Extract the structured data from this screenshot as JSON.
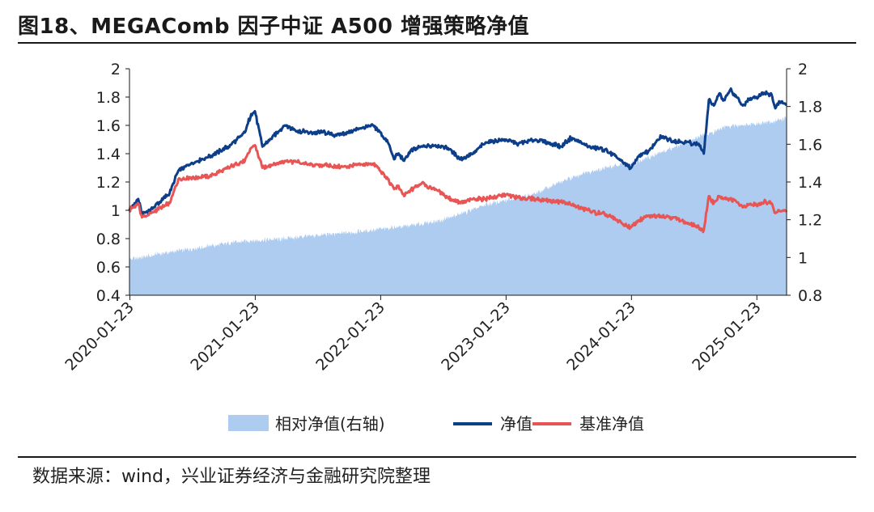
{
  "title": "图18、MEGAComb 因子中证 A500 增强策略净值",
  "source": "数据来源：wind，兴业证券经济与金融研究院整理",
  "colors": {
    "relative": "#aecbf0",
    "nav": "#0c3e8a",
    "benchmark": "#e85555",
    "axis": "#1a1a1a"
  },
  "chart_data": {
    "type": "line",
    "legend_position": "bottom",
    "grid": false,
    "x_ticks": [
      "2020-01-23",
      "2021-01-23",
      "2022-01-23",
      "2023-01-23",
      "2024-01-23",
      "2025-01-23"
    ],
    "x_range": [
      2020.06,
      2025.3
    ],
    "y_left": {
      "ticks": [
        "2",
        "1.8",
        "1.6",
        "1.4",
        "1.2",
        "1",
        "0.8",
        "0.6",
        "0.4"
      ],
      "range": [
        0.4,
        2.0
      ]
    },
    "y_right": {
      "ticks": [
        "2",
        "1.8",
        "1.6",
        "1.4",
        "1.2",
        "1",
        "0.8"
      ],
      "range": [
        0.8,
        2.0
      ]
    },
    "series": [
      {
        "name": "相对净值(右轴)",
        "type": "area",
        "axis": "right",
        "points": [
          [
            2020.06,
            0.99
          ],
          [
            2020.15,
            1.0
          ],
          [
            2020.3,
            1.02
          ],
          [
            2020.5,
            1.04
          ],
          [
            2020.7,
            1.06
          ],
          [
            2020.9,
            1.08
          ],
          [
            2021.06,
            1.09
          ],
          [
            2021.3,
            1.1
          ],
          [
            2021.6,
            1.12
          ],
          [
            2021.8,
            1.13
          ],
          [
            2022.06,
            1.15
          ],
          [
            2022.3,
            1.17
          ],
          [
            2022.5,
            1.19
          ],
          [
            2022.7,
            1.23
          ],
          [
            2022.9,
            1.28
          ],
          [
            2023.06,
            1.3
          ],
          [
            2023.3,
            1.34
          ],
          [
            2023.5,
            1.4
          ],
          [
            2023.7,
            1.45
          ],
          [
            2023.9,
            1.48
          ],
          [
            2024.06,
            1.5
          ],
          [
            2024.2,
            1.53
          ],
          [
            2024.35,
            1.57
          ],
          [
            2024.5,
            1.61
          ],
          [
            2024.6,
            1.64
          ],
          [
            2024.7,
            1.66
          ],
          [
            2024.8,
            1.69
          ],
          [
            2024.95,
            1.7
          ],
          [
            2025.06,
            1.71
          ],
          [
            2025.2,
            1.72
          ],
          [
            2025.3,
            1.74
          ]
        ]
      },
      {
        "name": "净值",
        "type": "line",
        "axis": "left",
        "points": [
          [
            2020.06,
            1.0
          ],
          [
            2020.1,
            1.05
          ],
          [
            2020.13,
            1.08
          ],
          [
            2020.16,
            0.97
          ],
          [
            2020.25,
            1.02
          ],
          [
            2020.38,
            1.12
          ],
          [
            2020.45,
            1.28
          ],
          [
            2020.55,
            1.33
          ],
          [
            2020.7,
            1.38
          ],
          [
            2020.85,
            1.45
          ],
          [
            2020.98,
            1.55
          ],
          [
            2021.03,
            1.68
          ],
          [
            2021.06,
            1.7
          ],
          [
            2021.12,
            1.45
          ],
          [
            2021.2,
            1.52
          ],
          [
            2021.3,
            1.6
          ],
          [
            2021.4,
            1.56
          ],
          [
            2021.5,
            1.55
          ],
          [
            2021.6,
            1.55
          ],
          [
            2021.7,
            1.53
          ],
          [
            2021.8,
            1.55
          ],
          [
            2021.9,
            1.58
          ],
          [
            2022.0,
            1.6
          ],
          [
            2022.06,
            1.55
          ],
          [
            2022.12,
            1.48
          ],
          [
            2022.17,
            1.36
          ],
          [
            2022.2,
            1.4
          ],
          [
            2022.25,
            1.35
          ],
          [
            2022.3,
            1.42
          ],
          [
            2022.4,
            1.45
          ],
          [
            2022.5,
            1.46
          ],
          [
            2022.6,
            1.44
          ],
          [
            2022.7,
            1.36
          ],
          [
            2022.8,
            1.4
          ],
          [
            2022.9,
            1.48
          ],
          [
            2023.06,
            1.5
          ],
          [
            2023.15,
            1.47
          ],
          [
            2023.3,
            1.5
          ],
          [
            2023.4,
            1.48
          ],
          [
            2023.5,
            1.45
          ],
          [
            2023.58,
            1.51
          ],
          [
            2023.65,
            1.48
          ],
          [
            2023.75,
            1.44
          ],
          [
            2023.85,
            1.43
          ],
          [
            2023.95,
            1.37
          ],
          [
            2024.0,
            1.33
          ],
          [
            2024.06,
            1.3
          ],
          [
            2024.12,
            1.38
          ],
          [
            2024.2,
            1.42
          ],
          [
            2024.3,
            1.52
          ],
          [
            2024.4,
            1.49
          ],
          [
            2024.5,
            1.48
          ],
          [
            2024.6,
            1.47
          ],
          [
            2024.64,
            1.4
          ],
          [
            2024.68,
            1.78
          ],
          [
            2024.72,
            1.74
          ],
          [
            2024.76,
            1.82
          ],
          [
            2024.8,
            1.78
          ],
          [
            2024.85,
            1.85
          ],
          [
            2024.9,
            1.8
          ],
          [
            2024.95,
            1.74
          ],
          [
            2025.0,
            1.78
          ],
          [
            2025.06,
            1.8
          ],
          [
            2025.12,
            1.83
          ],
          [
            2025.18,
            1.82
          ],
          [
            2025.21,
            1.72
          ],
          [
            2025.24,
            1.77
          ],
          [
            2025.3,
            1.75
          ]
        ]
      },
      {
        "name": "基准净值",
        "type": "line",
        "axis": "left",
        "points": [
          [
            2020.06,
            1.0
          ],
          [
            2020.1,
            1.03
          ],
          [
            2020.13,
            1.05
          ],
          [
            2020.16,
            0.95
          ],
          [
            2020.25,
            0.99
          ],
          [
            2020.38,
            1.05
          ],
          [
            2020.45,
            1.22
          ],
          [
            2020.55,
            1.23
          ],
          [
            2020.7,
            1.24
          ],
          [
            2020.85,
            1.3
          ],
          [
            2020.98,
            1.35
          ],
          [
            2021.03,
            1.44
          ],
          [
            2021.06,
            1.46
          ],
          [
            2021.12,
            1.3
          ],
          [
            2021.2,
            1.32
          ],
          [
            2021.3,
            1.35
          ],
          [
            2021.4,
            1.34
          ],
          [
            2021.5,
            1.32
          ],
          [
            2021.6,
            1.32
          ],
          [
            2021.7,
            1.31
          ],
          [
            2021.8,
            1.31
          ],
          [
            2021.9,
            1.32
          ],
          [
            2022.0,
            1.33
          ],
          [
            2022.06,
            1.28
          ],
          [
            2022.12,
            1.22
          ],
          [
            2022.17,
            1.15
          ],
          [
            2022.2,
            1.17
          ],
          [
            2022.25,
            1.1
          ],
          [
            2022.3,
            1.14
          ],
          [
            2022.4,
            1.2
          ],
          [
            2022.45,
            1.16
          ],
          [
            2022.5,
            1.15
          ],
          [
            2022.6,
            1.09
          ],
          [
            2022.7,
            1.05
          ],
          [
            2022.8,
            1.08
          ],
          [
            2022.9,
            1.08
          ],
          [
            2023.06,
            1.11
          ],
          [
            2023.15,
            1.09
          ],
          [
            2023.3,
            1.08
          ],
          [
            2023.4,
            1.07
          ],
          [
            2023.5,
            1.06
          ],
          [
            2023.58,
            1.04
          ],
          [
            2023.65,
            1.02
          ],
          [
            2023.75,
            0.99
          ],
          [
            2023.85,
            0.97
          ],
          [
            2023.95,
            0.93
          ],
          [
            2024.0,
            0.9
          ],
          [
            2024.06,
            0.88
          ],
          [
            2024.12,
            0.93
          ],
          [
            2024.2,
            0.96
          ],
          [
            2024.3,
            0.96
          ],
          [
            2024.4,
            0.95
          ],
          [
            2024.5,
            0.91
          ],
          [
            2024.6,
            0.88
          ],
          [
            2024.64,
            0.86
          ],
          [
            2024.68,
            1.1
          ],
          [
            2024.72,
            1.05
          ],
          [
            2024.76,
            1.1
          ],
          [
            2024.8,
            1.08
          ],
          [
            2024.85,
            1.08
          ],
          [
            2024.9,
            1.06
          ],
          [
            2024.95,
            1.02
          ],
          [
            2025.0,
            1.04
          ],
          [
            2025.06,
            1.04
          ],
          [
            2025.12,
            1.06
          ],
          [
            2025.18,
            1.05
          ],
          [
            2025.21,
            0.98
          ],
          [
            2025.24,
            1.0
          ],
          [
            2025.3,
            1.0
          ]
        ]
      }
    ]
  }
}
